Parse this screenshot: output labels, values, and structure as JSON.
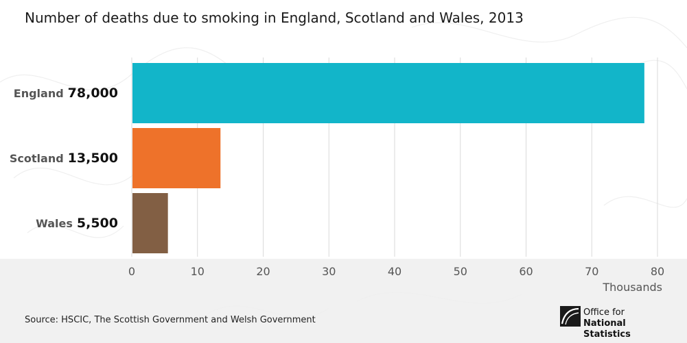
{
  "chart_data": {
    "type": "bar",
    "orientation": "horizontal",
    "title": "Number of deaths due to smoking in England, Scotland and Wales, 2013",
    "categories": [
      "England",
      "Scotland",
      "Wales"
    ],
    "values": [
      78,
      13.5,
      5.5
    ],
    "value_labels": [
      "78,000",
      "13,500",
      "5,500"
    ],
    "colors": [
      "#12b5c9",
      "#ee722a",
      "#825f44"
    ],
    "xlabel": "Thousands",
    "ylabel": "",
    "xlim": [
      0,
      80
    ],
    "xticks": [
      0,
      10,
      20,
      30,
      40,
      50,
      60,
      70,
      80
    ],
    "grid": true,
    "legend": "none"
  },
  "source": "Source: HSCIC, The Scottish Government and Welsh Government",
  "logo": {
    "line1": "Office for",
    "line2": "National Statistics",
    "icon": "ons-logo-icon"
  }
}
